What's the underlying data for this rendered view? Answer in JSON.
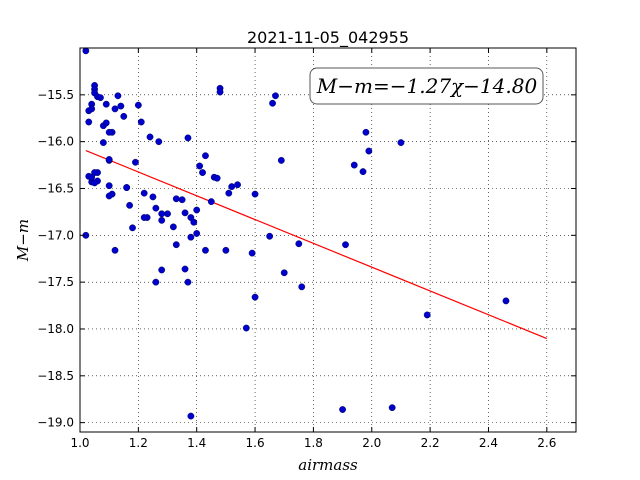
{
  "chart_data": {
    "type": "scatter",
    "title": "2021-11-05_042955",
    "xlabel": "airmass",
    "ylabel": "M−m",
    "xlim": [
      1.0,
      2.7
    ],
    "ylim": [
      -19.1,
      -15.0
    ],
    "xticks": [
      "1.0",
      "1.2",
      "1.4",
      "1.6",
      "1.8",
      "2.0",
      "2.2",
      "2.4",
      "2.6"
    ],
    "xtick_values": [
      1.0,
      1.2,
      1.4,
      1.6,
      1.8,
      2.0,
      2.2,
      2.4,
      2.6
    ],
    "yticks": [
      "−15.5",
      "−16.0",
      "−16.5",
      "−17.0",
      "−17.5",
      "−18.0",
      "−18.5",
      "−19.0"
    ],
    "ytick_values": [
      -15.5,
      -16.0,
      -16.5,
      -17.0,
      -17.5,
      -18.0,
      -18.5,
      -19.0
    ],
    "grid": true,
    "annotation": "M−m=−1.27χ−14.80",
    "fit_line": {
      "slope": -1.27,
      "intercept": -14.8,
      "x_range": [
        1.02,
        2.6
      ],
      "color": "#ff0000"
    },
    "point_color": "#0000cc",
    "series": [
      {
        "x": [
          1.02,
          1.03,
          1.03,
          1.04,
          1.04,
          1.05,
          1.05,
          1.05,
          1.06,
          1.06,
          1.06,
          1.07,
          1.08,
          1.09,
          1.09,
          1.1,
          1.1,
          1.11,
          1.12,
          1.13,
          1.14,
          1.15,
          1.03,
          1.04,
          1.05,
          1.05,
          1.04,
          1.08,
          1.1,
          1.11,
          1.12,
          1.02,
          1.1,
          1.1,
          1.16,
          1.17,
          1.18,
          1.19,
          1.2,
          1.21,
          1.22,
          1.23,
          1.24,
          1.25,
          1.26,
          1.27,
          1.28,
          1.28,
          1.3,
          1.32,
          1.33,
          1.33,
          1.35,
          1.36,
          1.36,
          1.37,
          1.37,
          1.38,
          1.38,
          1.39,
          1.4,
          1.4,
          1.41,
          1.42,
          1.43,
          1.43,
          1.45,
          1.46,
          1.47,
          1.48,
          1.48,
          1.5,
          1.51,
          1.52,
          1.54,
          1.57,
          1.59,
          1.6,
          1.6,
          1.65,
          1.66,
          1.67,
          1.69,
          1.7,
          1.75,
          1.76,
          1.9,
          1.91,
          1.94,
          1.97,
          1.98,
          1.99,
          2.07,
          2.1,
          2.19,
          2.46,
          1.38,
          1.26,
          1.16,
          1.22,
          1.28
        ],
        "y": [
          -15.03,
          -15.67,
          -15.79,
          -15.6,
          -15.65,
          -15.4,
          -15.44,
          -15.48,
          -15.52,
          -16.33,
          -16.42,
          -15.53,
          -15.83,
          -15.8,
          -15.6,
          -16.2,
          -16.19,
          -15.9,
          -15.65,
          -15.51,
          -15.62,
          -15.73,
          -16.37,
          -16.43,
          -16.44,
          -16.33,
          -16.38,
          -16.01,
          -16.47,
          -16.56,
          -17.16,
          -17.0,
          -15.9,
          -16.58,
          -16.49,
          -16.68,
          -16.92,
          -16.22,
          -15.61,
          -15.79,
          -16.55,
          -16.81,
          -15.95,
          -16.59,
          -16.71,
          -16.0,
          -16.84,
          -17.37,
          -16.77,
          -16.91,
          -16.61,
          -17.1,
          -16.62,
          -16.76,
          -17.36,
          -17.5,
          -15.96,
          -16.81,
          -17.02,
          -16.86,
          -16.73,
          -16.98,
          -16.26,
          -16.33,
          -16.15,
          -17.16,
          -16.64,
          -16.38,
          -16.39,
          -15.43,
          -15.47,
          -17.16,
          -16.55,
          -16.48,
          -16.46,
          -17.99,
          -17.19,
          -16.56,
          -17.66,
          -17.01,
          -15.59,
          -15.51,
          -16.2,
          -17.4,
          -17.09,
          -17.55,
          -18.86,
          -17.1,
          -16.25,
          -16.32,
          -15.9,
          -16.1,
          -18.84,
          -16.01,
          -17.85,
          -17.7,
          -18.93,
          -17.5,
          -16.49,
          -16.81,
          -16.77
        ]
      }
    ]
  }
}
